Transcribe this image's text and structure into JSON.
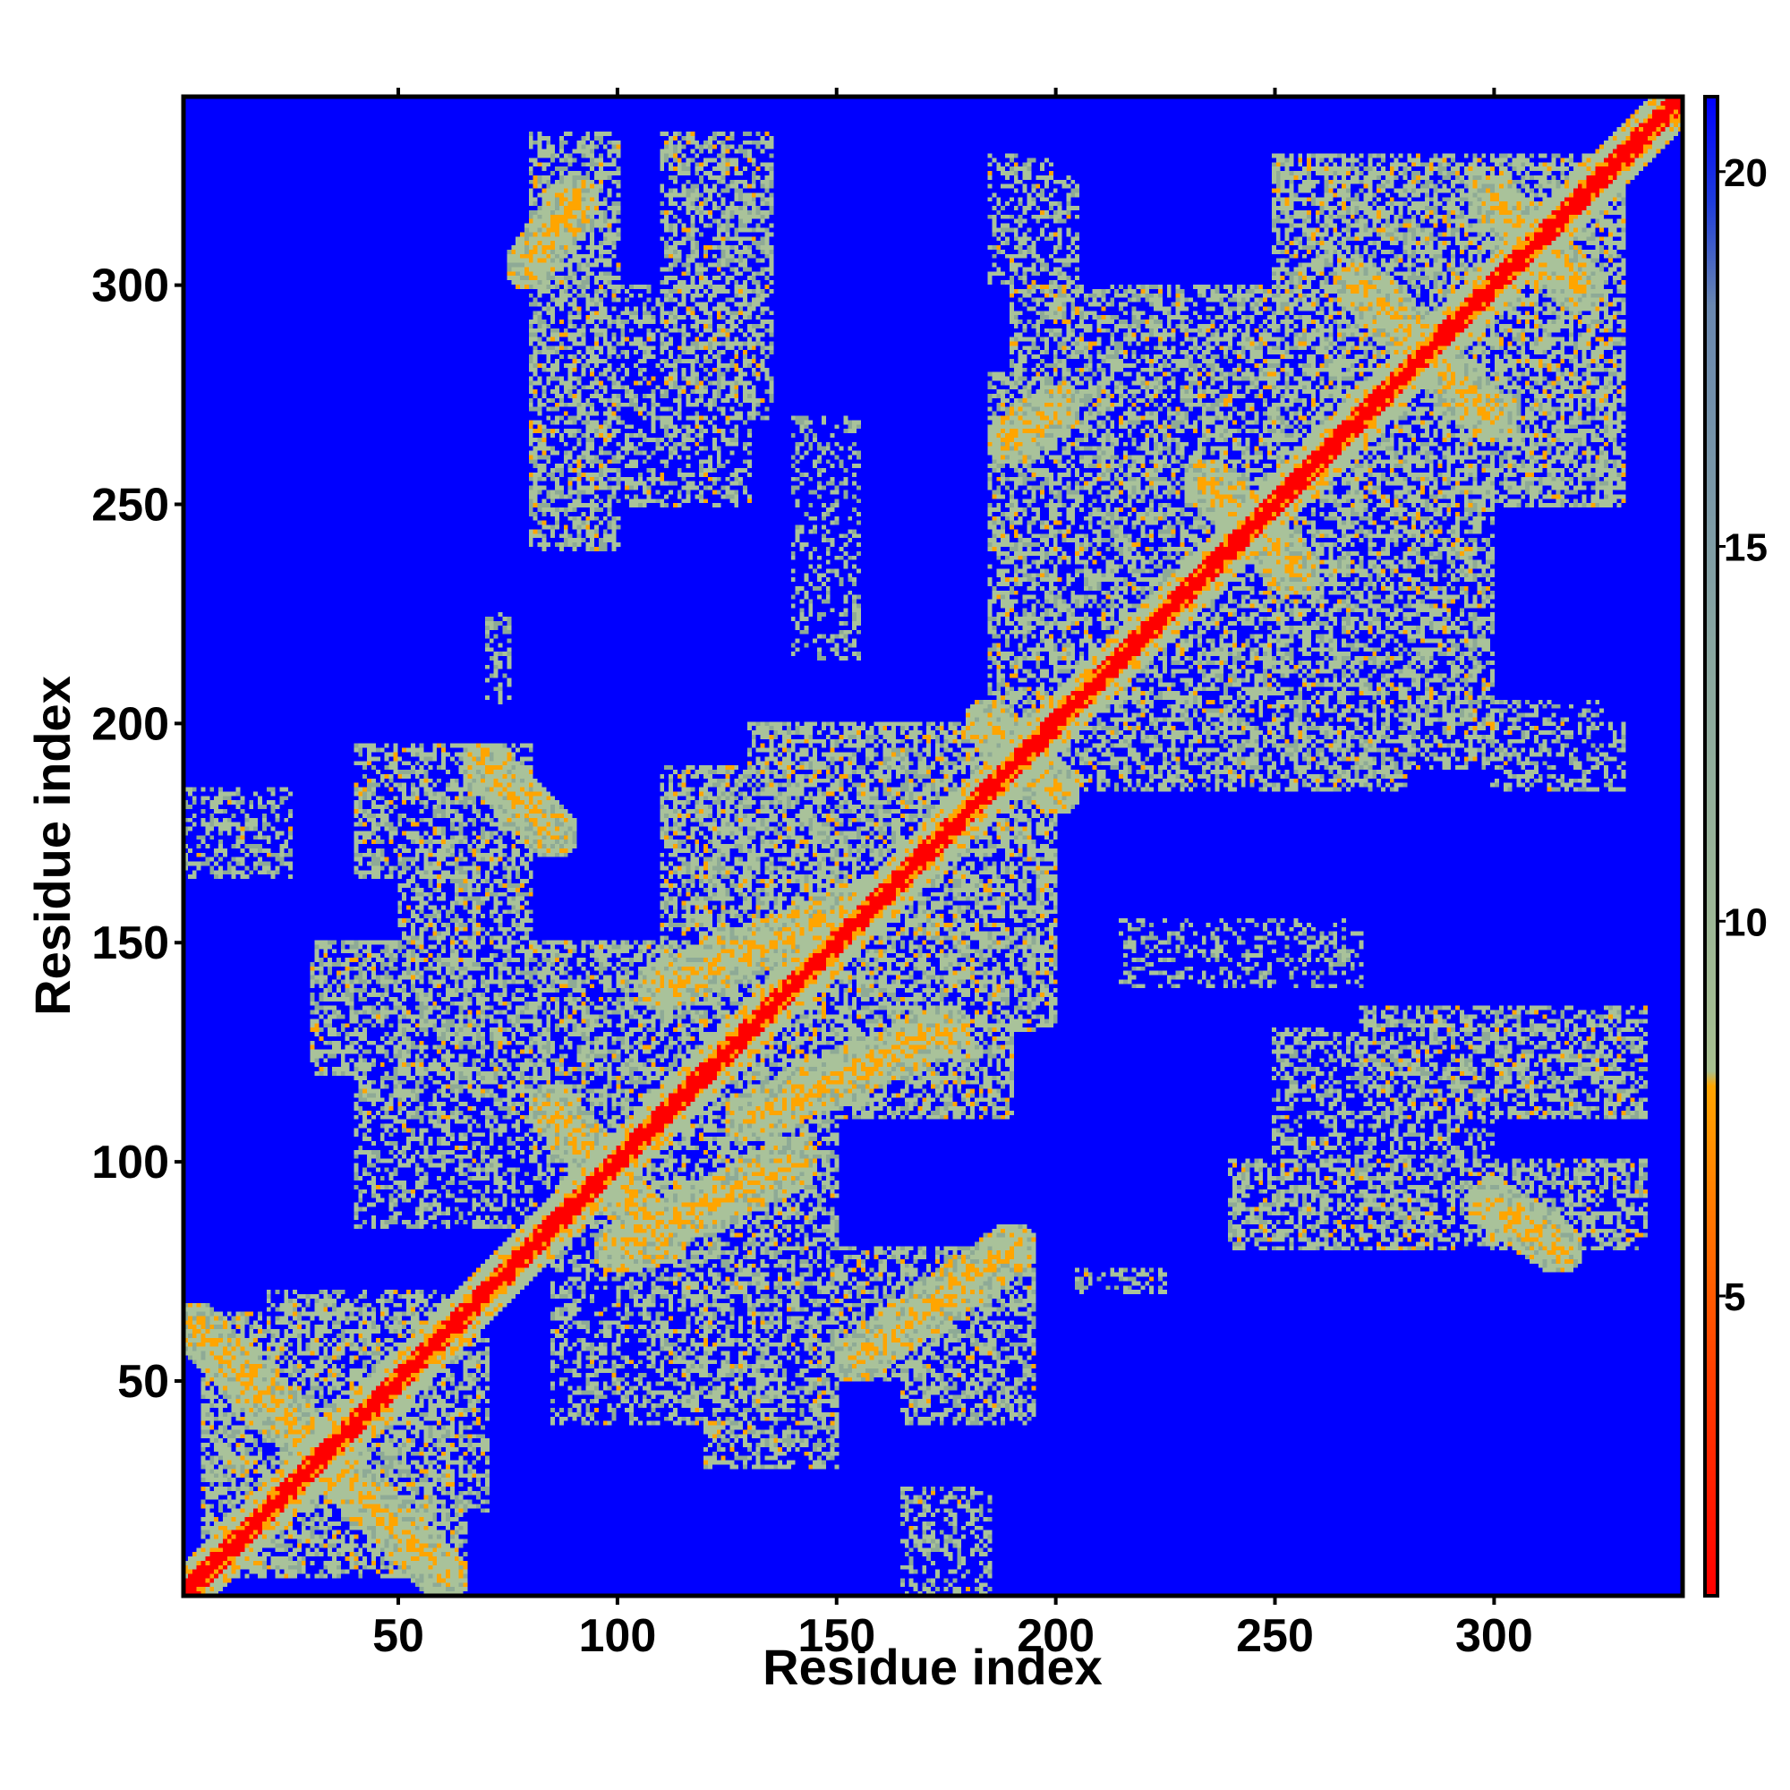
{
  "chart_data": {
    "type": "heatmap",
    "title": "",
    "xlabel": "Residue index",
    "ylabel": "Residue index",
    "n_residues": 343,
    "xlim": [
      1,
      343
    ],
    "ylim": [
      1,
      343
    ],
    "x_ticks": [
      50,
      100,
      150,
      200,
      250,
      300
    ],
    "y_ticks": [
      50,
      100,
      150,
      200,
      250,
      300
    ],
    "grid": false,
    "colorbar": {
      "ticks": [
        5,
        10,
        15,
        20
      ],
      "range": [
        1,
        21
      ],
      "colors": [
        {
          "value": 1,
          "color": "#ff0000"
        },
        {
          "value": 4,
          "color": "#ff4000"
        },
        {
          "value": 8,
          "color": "#ffa500"
        },
        {
          "value": 9,
          "color": "#a8c090"
        },
        {
          "value": 13,
          "color": "#8aa8a0"
        },
        {
          "value": 18,
          "color": "#6a88b0"
        },
        {
          "value": 19.5,
          "color": "#1e3cdc"
        },
        {
          "value": 21,
          "color": "#0000ff"
        }
      ]
    },
    "colors": {
      "background": "#0000ff",
      "diagonal": "#ff0000",
      "contact": "#ffa500",
      "near": "#a9c29a"
    },
    "contact_segments": [
      {
        "x": [
          1,
          340
        ],
        "y": [
          1,
          340
        ],
        "d": 0
      },
      {
        "x": [
          3,
          60
        ],
        "y": [
          62,
          5
        ],
        "d": 6
      },
      {
        "x": [
          85,
          110
        ],
        "y": [
          112,
          82
        ],
        "d": 6
      },
      {
        "x": [
          70,
          85
        ],
        "y": [
          190,
          175
        ],
        "d": 6
      },
      {
        "x": [
          110,
          160
        ],
        "y": [
          140,
          160
        ],
        "d": 6
      },
      {
        "x": [
          185,
          200
        ],
        "y": [
          200,
          185
        ],
        "d": 6
      },
      {
        "x": [
          235,
          255
        ],
        "y": [
          255,
          235
        ],
        "d": 6
      },
      {
        "x": [
          270,
          300
        ],
        "y": [
          300,
          270
        ],
        "d": 6
      },
      {
        "x": [
          300,
          320
        ],
        "y": [
          320,
          300
        ],
        "d": 6
      },
      {
        "x": [
          80,
          90
        ],
        "y": [
          305,
          320
        ],
        "d": 6
      },
      {
        "x": [
          155,
          190
        ],
        "y": [
          55,
          80
        ],
        "d": 6
      },
      {
        "x": [
          300,
          315
        ],
        "y": [
          90,
          80
        ],
        "d": 6
      },
      {
        "x": [
          190,
          200
        ],
        "y": [
          265,
          272
        ],
        "d": 6
      },
      {
        "x": [
          100,
          140
        ],
        "y": [
          80,
          100
        ],
        "d": 6
      },
      {
        "x": [
          130,
          175
        ],
        "y": [
          110,
          130
        ],
        "d": 6
      }
    ],
    "contact_regions": [
      {
        "x": [
          5,
          65
        ],
        "y": [
          5,
          65
        ],
        "v": 0.55
      },
      {
        "x": [
          30,
          70
        ],
        "y": [
          20,
          60
        ],
        "v": 0.5
      },
      {
        "x": [
          40,
          80
        ],
        "y": [
          165,
          195
        ],
        "v": 0.5
      },
      {
        "x": [
          30,
          80
        ],
        "y": [
          120,
          150
        ],
        "v": 0.5
      },
      {
        "x": [
          80,
          100
        ],
        "y": [
          260,
          335
        ],
        "v": 0.5
      },
      {
        "x": [
          110,
          135
        ],
        "y": [
          270,
          335
        ],
        "v": 0.5
      },
      {
        "x": [
          110,
          150
        ],
        "y": [
          40,
          160
        ],
        "v": 0.5
      },
      {
        "x": [
          130,
          190
        ],
        "y": [
          110,
          200
        ],
        "v": 0.55
      },
      {
        "x": [
          150,
          195
        ],
        "y": [
          50,
          80
        ],
        "v": 0.5
      },
      {
        "x": [
          185,
          230
        ],
        "y": [
          185,
          280
        ],
        "v": 0.5
      },
      {
        "x": [
          230,
          300
        ],
        "y": [
          190,
          260
        ],
        "v": 0.5
      },
      {
        "x": [
          250,
          330
        ],
        "y": [
          260,
          330
        ],
        "v": 0.55
      },
      {
        "x": [
          240,
          330
        ],
        "y": [
          80,
          100
        ],
        "v": 0.5
      },
      {
        "x": [
          250,
          300
        ],
        "y": [
          100,
          130
        ],
        "v": 0.45
      },
      {
        "x": [
          185,
          205
        ],
        "y": [
          300,
          325
        ],
        "v": 0.45
      },
      {
        "x": [
          85,
          130
        ],
        "y": [
          40,
          110
        ],
        "v": 0.45
      },
      {
        "x": [
          205,
          225
        ],
        "y": [
          70,
          75
        ],
        "v": 0.45
      },
      {
        "x": [
          0,
          25
        ],
        "y": [
          165,
          185
        ],
        "v": 0.45
      },
      {
        "x": [
          310,
          330
        ],
        "y": [
          185,
          200
        ],
        "v": 0.45
      },
      {
        "x": [
          215,
          270
        ],
        "y": [
          140,
          155
        ],
        "v": 0.4
      }
    ]
  }
}
